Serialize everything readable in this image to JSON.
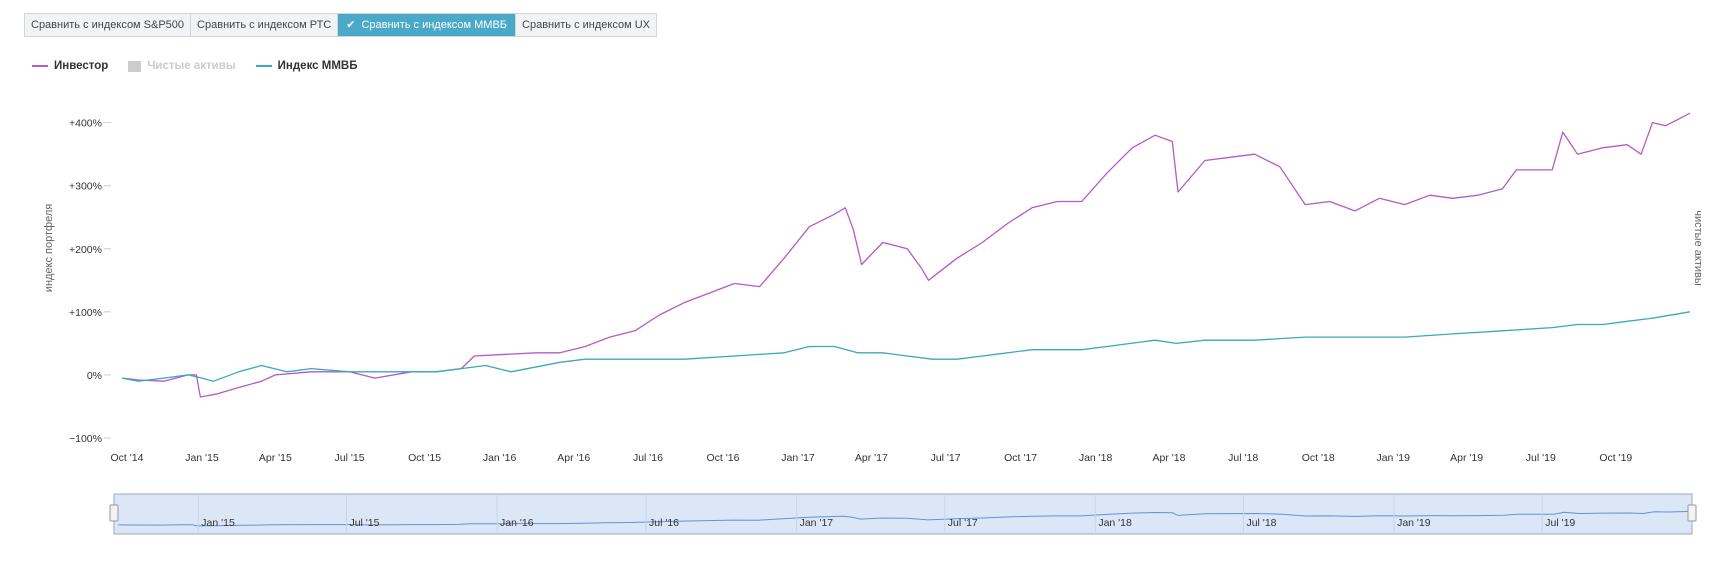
{
  "tabs": [
    {
      "label": "Сравнить с индексом S&P500",
      "active": false
    },
    {
      "label": "Сравнить с индексом РТС",
      "active": false
    },
    {
      "label": "Сравнить с индексом ММВБ",
      "active": true
    },
    {
      "label": "Сравнить с индексом UX",
      "active": false
    }
  ],
  "legend": [
    {
      "label": "Инвестор",
      "color": "#b45ac8",
      "kind": "line",
      "visible": true
    },
    {
      "label": "Чистые активы",
      "color": "#cccccc",
      "kind": "box",
      "visible": false
    },
    {
      "label": "Индекс ММВБ",
      "color": "#3aa9b8",
      "kind": "line",
      "visible": true
    }
  ],
  "colors": {
    "investor": "#b45ac8",
    "index": "#3aa9b8",
    "navigator_fill": "#dbe7f7",
    "navigator_line": "#6b8fd0"
  },
  "chart_data": {
    "type": "line",
    "ylabel": "индекс портфеля",
    "y2label": "чистые активы",
    "ylim": [
      -100,
      420
    ],
    "yticks": [
      -100,
      0,
      100,
      200,
      300,
      400
    ],
    "ytick_labels": [
      "−100%",
      "0%",
      "+100%",
      "+200%",
      "+300%",
      "+400%"
    ],
    "xlim": [
      "2014-09-20",
      "2019-12-31"
    ],
    "xticks": [
      {
        "date": "2014-10-01",
        "label": "Oct '14"
      },
      {
        "date": "2015-01-01",
        "label": "Jan '15"
      },
      {
        "date": "2015-04-01",
        "label": "Apr '15"
      },
      {
        "date": "2015-07-01",
        "label": "Jul '15"
      },
      {
        "date": "2015-10-01",
        "label": "Oct '15"
      },
      {
        "date": "2016-01-01",
        "label": "Jan '16"
      },
      {
        "date": "2016-04-01",
        "label": "Apr '16"
      },
      {
        "date": "2016-07-01",
        "label": "Jul '16"
      },
      {
        "date": "2016-10-01",
        "label": "Oct '16"
      },
      {
        "date": "2017-01-01",
        "label": "Jan '17"
      },
      {
        "date": "2017-04-01",
        "label": "Apr '17"
      },
      {
        "date": "2017-07-01",
        "label": "Jul '17"
      },
      {
        "date": "2017-10-01",
        "label": "Oct '17"
      },
      {
        "date": "2018-01-01",
        "label": "Jan '18"
      },
      {
        "date": "2018-04-01",
        "label": "Apr '18"
      },
      {
        "date": "2018-07-01",
        "label": "Jul '18"
      },
      {
        "date": "2018-10-01",
        "label": "Oct '18"
      },
      {
        "date": "2019-01-01",
        "label": "Jan '19"
      },
      {
        "date": "2019-04-01",
        "label": "Apr '19"
      },
      {
        "date": "2019-07-01",
        "label": "Jul '19"
      },
      {
        "date": "2019-10-01",
        "label": "Oct '19"
      }
    ],
    "navigator_ticks": [
      {
        "date": "2015-01-01",
        "label": "Jan '15"
      },
      {
        "date": "2015-07-01",
        "label": "Jul '15"
      },
      {
        "date": "2016-01-01",
        "label": "Jan '16"
      },
      {
        "date": "2016-07-01",
        "label": "Jul '16"
      },
      {
        "date": "2017-01-01",
        "label": "Jan '17"
      },
      {
        "date": "2017-07-01",
        "label": "Jul '17"
      },
      {
        "date": "2018-01-01",
        "label": "Jan '18"
      },
      {
        "date": "2018-07-01",
        "label": "Jul '18"
      },
      {
        "date": "2019-01-01",
        "label": "Jan '19"
      },
      {
        "date": "2019-07-01",
        "label": "Jul '19"
      }
    ],
    "series": [
      {
        "name": "Инвестор",
        "points": [
          [
            "2014-09-25",
            -5
          ],
          [
            "2014-10-15",
            -8
          ],
          [
            "2014-11-15",
            -10
          ],
          [
            "2014-12-15",
            0
          ],
          [
            "2014-12-25",
            0
          ],
          [
            "2014-12-30",
            -35
          ],
          [
            "2015-01-20",
            -30
          ],
          [
            "2015-02-15",
            -20
          ],
          [
            "2015-03-15",
            -10
          ],
          [
            "2015-04-01",
            0
          ],
          [
            "2015-05-15",
            5
          ],
          [
            "2015-07-01",
            5
          ],
          [
            "2015-08-01",
            -5
          ],
          [
            "2015-09-15",
            5
          ],
          [
            "2015-10-15",
            5
          ],
          [
            "2015-11-15",
            10
          ],
          [
            "2015-12-01",
            30
          ],
          [
            "2016-01-01",
            32
          ],
          [
            "2016-02-15",
            35
          ],
          [
            "2016-03-15",
            35
          ],
          [
            "2016-04-15",
            45
          ],
          [
            "2016-05-15",
            60
          ],
          [
            "2016-06-15",
            70
          ],
          [
            "2016-07-15",
            95
          ],
          [
            "2016-08-15",
            115
          ],
          [
            "2016-09-15",
            130
          ],
          [
            "2016-10-15",
            145
          ],
          [
            "2016-11-15",
            140
          ],
          [
            "2016-12-15",
            185
          ],
          [
            "2017-01-15",
            235
          ],
          [
            "2017-02-15",
            255
          ],
          [
            "2017-02-28",
            265
          ],
          [
            "2017-03-10",
            230
          ],
          [
            "2017-03-20",
            175
          ],
          [
            "2017-04-15",
            210
          ],
          [
            "2017-05-15",
            200
          ],
          [
            "2017-06-01",
            170
          ],
          [
            "2017-06-10",
            150
          ],
          [
            "2017-07-15",
            185
          ],
          [
            "2017-08-15",
            210
          ],
          [
            "2017-09-15",
            240
          ],
          [
            "2017-10-15",
            265
          ],
          [
            "2017-11-15",
            275
          ],
          [
            "2017-12-15",
            275
          ],
          [
            "2018-01-15",
            320
          ],
          [
            "2018-02-15",
            360
          ],
          [
            "2018-03-15",
            380
          ],
          [
            "2018-04-05",
            370
          ],
          [
            "2018-04-12",
            290
          ],
          [
            "2018-05-15",
            340
          ],
          [
            "2018-06-15",
            345
          ],
          [
            "2018-07-15",
            350
          ],
          [
            "2018-08-15",
            330
          ],
          [
            "2018-09-15",
            270
          ],
          [
            "2018-10-15",
            275
          ],
          [
            "2018-11-15",
            260
          ],
          [
            "2018-12-15",
            280
          ],
          [
            "2019-01-15",
            270
          ],
          [
            "2019-02-15",
            285
          ],
          [
            "2019-03-15",
            280
          ],
          [
            "2019-04-15",
            285
          ],
          [
            "2019-05-15",
            295
          ],
          [
            "2019-06-01",
            325
          ],
          [
            "2019-07-15",
            325
          ],
          [
            "2019-07-28",
            385
          ],
          [
            "2019-08-15",
            350
          ],
          [
            "2019-09-15",
            360
          ],
          [
            "2019-10-15",
            365
          ],
          [
            "2019-11-01",
            350
          ],
          [
            "2019-11-15",
            400
          ],
          [
            "2019-12-01",
            395
          ],
          [
            "2019-12-31",
            415
          ]
        ]
      },
      {
        "name": "Индекс ММВБ",
        "points": [
          [
            "2014-09-25",
            -5
          ],
          [
            "2014-10-15",
            -10
          ],
          [
            "2014-11-15",
            -5
          ],
          [
            "2014-12-15",
            0
          ],
          [
            "2015-01-01",
            -5
          ],
          [
            "2015-01-15",
            -10
          ],
          [
            "2015-02-15",
            5
          ],
          [
            "2015-03-15",
            15
          ],
          [
            "2015-04-15",
            5
          ],
          [
            "2015-05-15",
            10
          ],
          [
            "2015-07-01",
            5
          ],
          [
            "2015-08-15",
            5
          ],
          [
            "2015-10-15",
            5
          ],
          [
            "2015-11-15",
            10
          ],
          [
            "2015-12-15",
            15
          ],
          [
            "2016-01-15",
            5
          ],
          [
            "2016-03-15",
            20
          ],
          [
            "2016-04-15",
            25
          ],
          [
            "2016-06-15",
            25
          ],
          [
            "2016-08-15",
            25
          ],
          [
            "2016-10-15",
            30
          ],
          [
            "2016-12-15",
            35
          ],
          [
            "2017-01-15",
            45
          ],
          [
            "2017-02-15",
            45
          ],
          [
            "2017-03-15",
            35
          ],
          [
            "2017-04-15",
            35
          ],
          [
            "2017-05-15",
            30
          ],
          [
            "2017-06-15",
            25
          ],
          [
            "2017-07-15",
            25
          ],
          [
            "2017-08-15",
            30
          ],
          [
            "2017-09-15",
            35
          ],
          [
            "2017-10-15",
            40
          ],
          [
            "2017-12-15",
            40
          ],
          [
            "2018-01-15",
            45
          ],
          [
            "2018-03-15",
            55
          ],
          [
            "2018-04-10",
            50
          ],
          [
            "2018-05-15",
            55
          ],
          [
            "2018-07-15",
            55
          ],
          [
            "2018-09-15",
            60
          ],
          [
            "2018-11-15",
            60
          ],
          [
            "2018-12-15",
            60
          ],
          [
            "2019-01-15",
            60
          ],
          [
            "2019-03-15",
            65
          ],
          [
            "2019-05-15",
            70
          ],
          [
            "2019-07-15",
            75
          ],
          [
            "2019-08-15",
            80
          ],
          [
            "2019-09-15",
            80
          ],
          [
            "2019-10-15",
            85
          ],
          [
            "2019-11-15",
            90
          ],
          [
            "2019-12-31",
            100
          ]
        ]
      }
    ]
  }
}
